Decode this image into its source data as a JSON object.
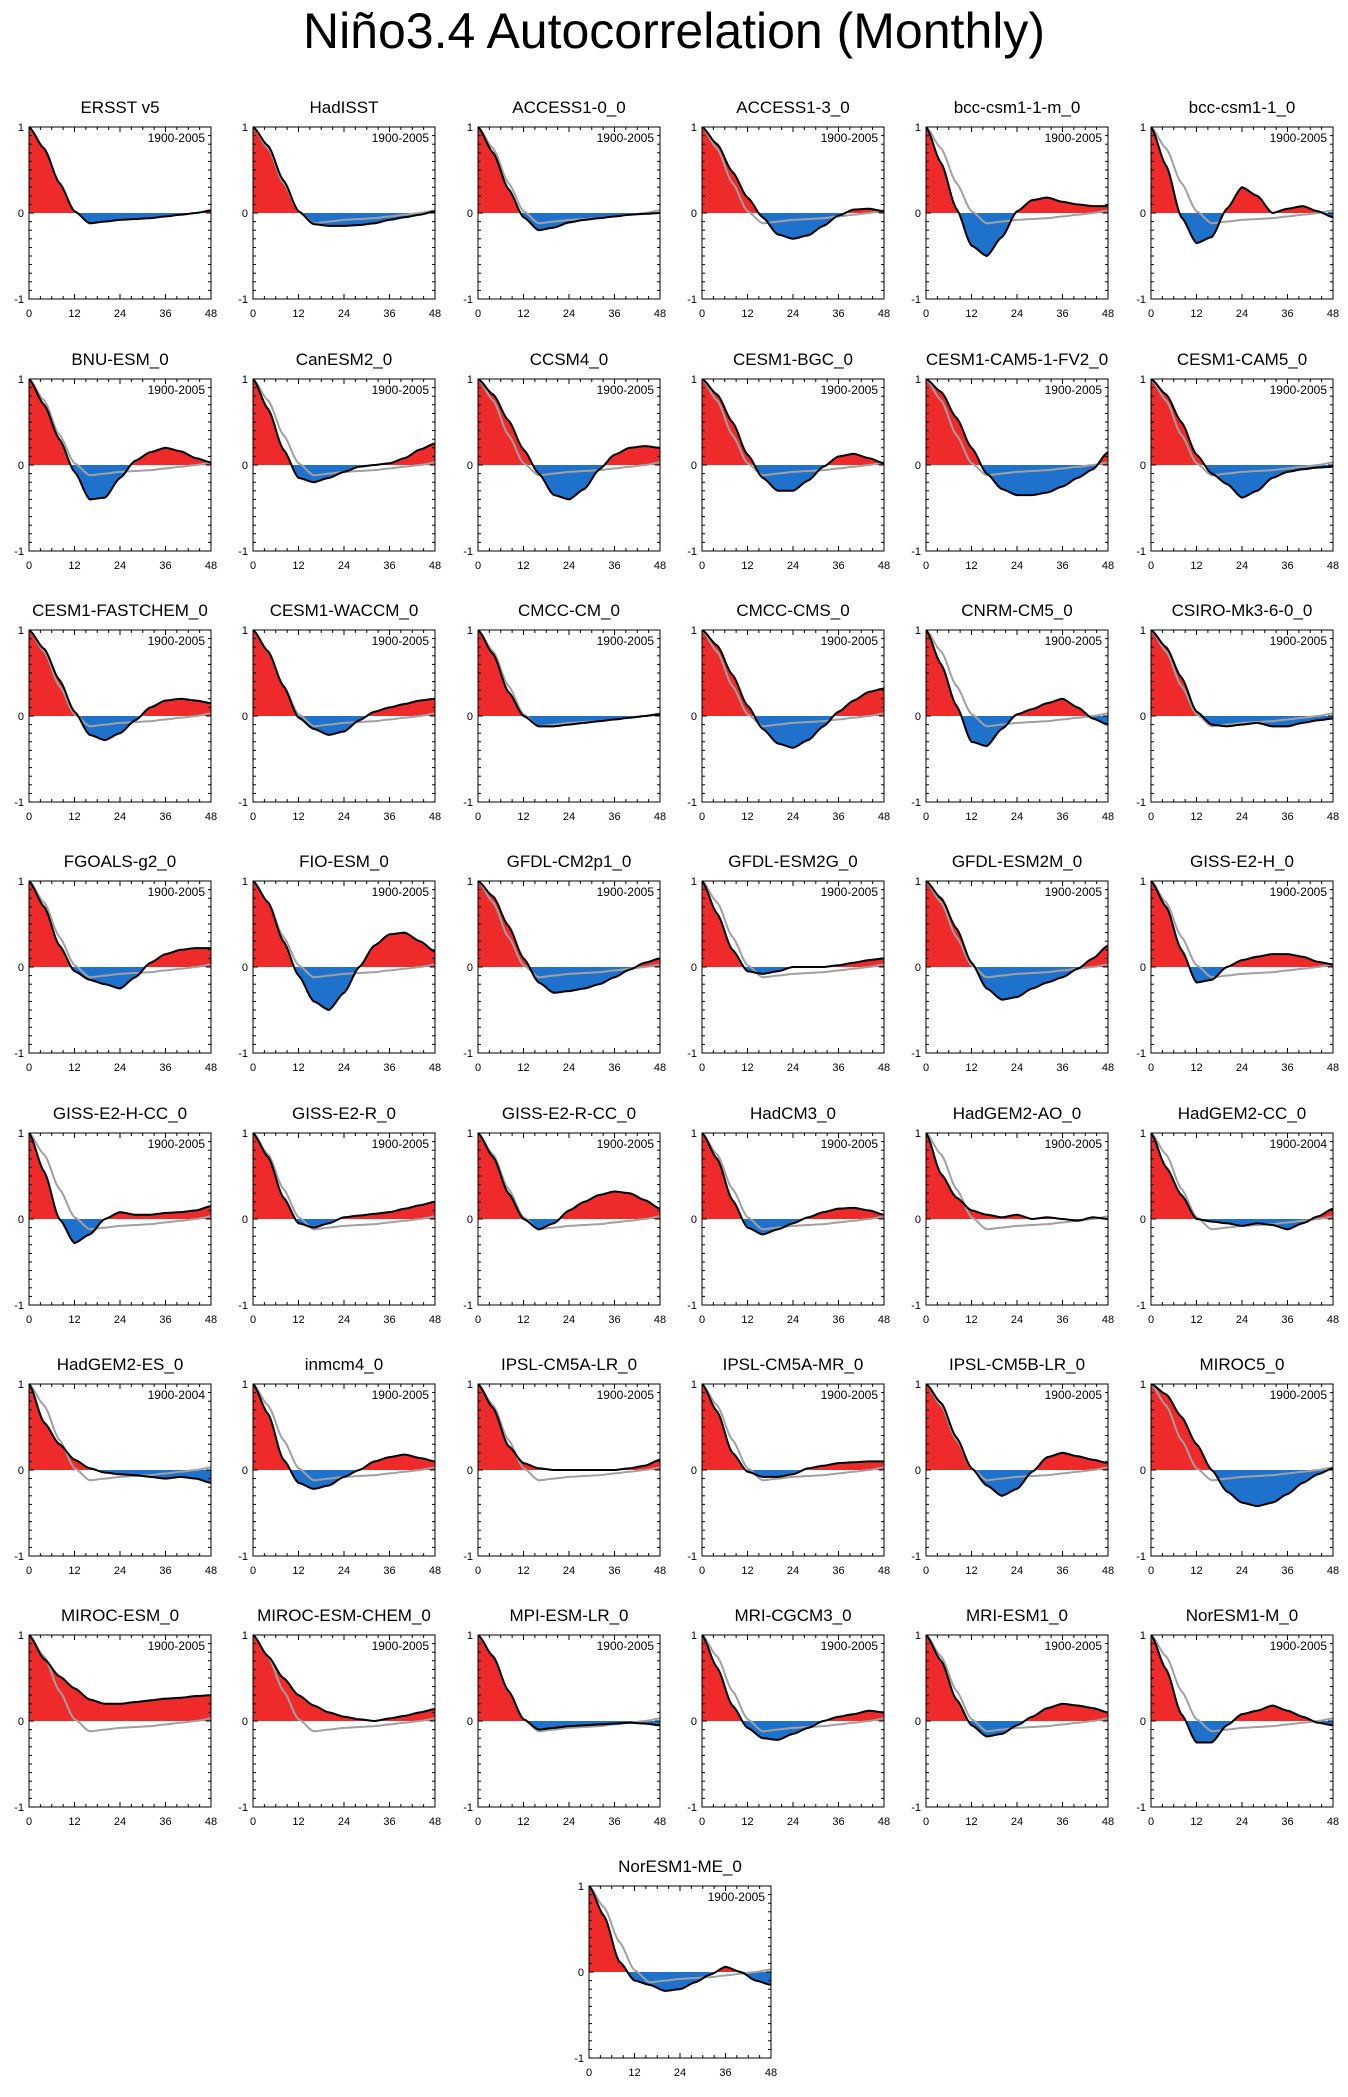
{
  "title": "Niño3.4 Autocorrelation (Monthly)",
  "colors": {
    "positive": "#ee2a2a",
    "negative": "#1f72cc",
    "model_line": "#000000",
    "reference_line": "#a0a0a0",
    "frame": "#000000"
  },
  "chart_data": {
    "type": "area",
    "xlim": [
      0,
      48
    ],
    "ylim": [
      -1,
      1
    ],
    "xticks": [
      0,
      12,
      24,
      36,
      48
    ],
    "yticks": [
      -1,
      0,
      1
    ],
    "xlabel": "",
    "ylabel": "",
    "reference": {
      "name": "ERSST v5",
      "lags": [
        0,
        4,
        8,
        12,
        16,
        20,
        24,
        28,
        32,
        36,
        40,
        44,
        48
      ],
      "values": [
        1.0,
        0.75,
        0.35,
        0.02,
        -0.12,
        -0.1,
        -0.08,
        -0.07,
        -0.06,
        -0.04,
        -0.02,
        0.0,
        0.03
      ]
    },
    "lags": [
      0,
      4,
      8,
      12,
      16,
      20,
      24,
      28,
      32,
      36,
      40,
      44,
      48
    ],
    "panels": [
      {
        "name": "ERSST v5",
        "period": "1900-2005",
        "values": [
          1.0,
          0.75,
          0.35,
          0.02,
          -0.12,
          -0.1,
          -0.08,
          -0.07,
          -0.06,
          -0.04,
          -0.02,
          0.0,
          0.03
        ]
      },
      {
        "name": "HadISST",
        "period": "1900-2005",
        "values": [
          1.0,
          0.78,
          0.38,
          0.02,
          -0.13,
          -0.15,
          -0.15,
          -0.14,
          -0.12,
          -0.08,
          -0.05,
          -0.02,
          0.02
        ]
      },
      {
        "name": "ACCESS1-0_0",
        "period": "1900-2005",
        "values": [
          1.0,
          0.7,
          0.28,
          -0.05,
          -0.2,
          -0.17,
          -0.11,
          -0.08,
          -0.06,
          -0.04,
          -0.02,
          -0.01,
          0.0
        ]
      },
      {
        "name": "ACCESS1-3_0",
        "period": "1900-2005",
        "values": [
          1.0,
          0.8,
          0.48,
          0.18,
          -0.05,
          -0.25,
          -0.3,
          -0.26,
          -0.15,
          -0.03,
          0.04,
          0.05,
          0.02
        ]
      },
      {
        "name": "bcc-csm1-1-m_0",
        "period": "1900-2005",
        "values": [
          1.0,
          0.58,
          0.05,
          -0.38,
          -0.5,
          -0.28,
          0.02,
          0.15,
          0.18,
          0.13,
          0.1,
          0.08,
          0.08
        ]
      },
      {
        "name": "bcc-csm1-1_0",
        "period": "1900-2005",
        "values": [
          1.0,
          0.55,
          -0.05,
          -0.35,
          -0.28,
          0.05,
          0.3,
          0.2,
          0.0,
          0.05,
          0.08,
          0.02,
          -0.05
        ]
      },
      {
        "name": "BNU-ESM_0",
        "period": "1900-2005",
        "values": [
          1.0,
          0.7,
          0.3,
          -0.08,
          -0.4,
          -0.38,
          -0.15,
          0.05,
          0.15,
          0.2,
          0.16,
          0.08,
          0.03
        ]
      },
      {
        "name": "CanESM2_0",
        "period": "1900-2005",
        "values": [
          1.0,
          0.65,
          0.18,
          -0.15,
          -0.2,
          -0.15,
          -0.08,
          -0.02,
          0.0,
          0.02,
          0.08,
          0.18,
          0.25
        ]
      },
      {
        "name": "CCSM4_0",
        "period": "1900-2005",
        "values": [
          1.0,
          0.82,
          0.52,
          0.18,
          -0.1,
          -0.35,
          -0.4,
          -0.28,
          -0.05,
          0.12,
          0.2,
          0.22,
          0.2
        ]
      },
      {
        "name": "CESM1-BGC_0",
        "period": "1900-2005",
        "values": [
          1.0,
          0.82,
          0.5,
          0.12,
          -0.15,
          -0.3,
          -0.3,
          -0.18,
          -0.02,
          0.1,
          0.13,
          0.08,
          0.02
        ]
      },
      {
        "name": "CESM1-CAM5-1-FV2_0",
        "period": "1900-2005",
        "values": [
          1.0,
          0.85,
          0.55,
          0.2,
          -0.1,
          -0.28,
          -0.35,
          -0.35,
          -0.32,
          -0.25,
          -0.15,
          -0.05,
          0.15
        ]
      },
      {
        "name": "CESM1-CAM5_0",
        "period": "1900-2005",
        "values": [
          1.0,
          0.82,
          0.5,
          0.12,
          -0.1,
          -0.22,
          -0.38,
          -0.3,
          -0.15,
          -0.08,
          -0.05,
          -0.03,
          -0.02
        ]
      },
      {
        "name": "CESM1-FASTCHEM_0",
        "period": "1900-2005",
        "values": [
          1.0,
          0.78,
          0.42,
          0.05,
          -0.22,
          -0.28,
          -0.2,
          -0.05,
          0.1,
          0.18,
          0.2,
          0.18,
          0.15
        ]
      },
      {
        "name": "CESM1-WACCM_0",
        "period": "1900-2005",
        "values": [
          1.0,
          0.75,
          0.35,
          -0.02,
          -0.15,
          -0.22,
          -0.18,
          -0.05,
          0.05,
          0.1,
          0.14,
          0.18,
          0.2
        ]
      },
      {
        "name": "CMCC-CM_0",
        "period": "1900-2005",
        "values": [
          1.0,
          0.72,
          0.28,
          0.0,
          -0.12,
          -0.12,
          -0.1,
          -0.08,
          -0.06,
          -0.04,
          -0.02,
          0.0,
          0.02
        ]
      },
      {
        "name": "CMCC-CMS_0",
        "period": "1900-2005",
        "values": [
          1.0,
          0.82,
          0.48,
          0.12,
          -0.15,
          -0.32,
          -0.37,
          -0.28,
          -0.12,
          0.05,
          0.18,
          0.28,
          0.32
        ]
      },
      {
        "name": "CNRM-CM5_0",
        "period": "1900-2005",
        "values": [
          1.0,
          0.6,
          0.12,
          -0.3,
          -0.35,
          -0.15,
          0.02,
          0.08,
          0.15,
          0.2,
          0.1,
          -0.03,
          -0.1
        ]
      },
      {
        "name": "CSIRO-Mk3-6-0_0",
        "period": "1900-2005",
        "values": [
          1.0,
          0.8,
          0.45,
          0.05,
          -0.1,
          -0.12,
          -0.1,
          -0.08,
          -0.12,
          -0.12,
          -0.08,
          -0.05,
          -0.03
        ]
      },
      {
        "name": "FGOALS-g2_0",
        "period": "1900-2005",
        "values": [
          1.0,
          0.7,
          0.25,
          -0.05,
          -0.15,
          -0.2,
          -0.25,
          -0.12,
          0.05,
          0.15,
          0.2,
          0.22,
          0.22
        ]
      },
      {
        "name": "FIO-ESM_0",
        "period": "1900-2005",
        "values": [
          1.0,
          0.75,
          0.3,
          -0.1,
          -0.4,
          -0.5,
          -0.3,
          0.0,
          0.25,
          0.38,
          0.4,
          0.3,
          0.18
        ]
      },
      {
        "name": "GFDL-CM2p1_0",
        "period": "1900-2005",
        "values": [
          1.0,
          0.82,
          0.48,
          0.1,
          -0.18,
          -0.3,
          -0.28,
          -0.25,
          -0.2,
          -0.12,
          -0.03,
          0.05,
          0.1
        ]
      },
      {
        "name": "GFDL-ESM2G_0",
        "period": "1900-2005",
        "values": [
          1.0,
          0.62,
          0.2,
          -0.05,
          -0.08,
          -0.05,
          0.0,
          0.0,
          0.0,
          0.02,
          0.05,
          0.08,
          0.1
        ]
      },
      {
        "name": "GFDL-ESM2M_0",
        "period": "1900-2005",
        "values": [
          1.0,
          0.8,
          0.45,
          0.05,
          -0.25,
          -0.38,
          -0.35,
          -0.25,
          -0.18,
          -0.12,
          -0.02,
          0.1,
          0.25
        ]
      },
      {
        "name": "GISS-E2-H_0",
        "period": "1900-2005",
        "values": [
          1.0,
          0.7,
          0.2,
          -0.18,
          -0.15,
          0.0,
          0.08,
          0.12,
          0.15,
          0.15,
          0.12,
          0.06,
          0.03
        ]
      },
      {
        "name": "GISS-E2-H-CC_0",
        "period": "1900-2005",
        "values": [
          1.0,
          0.55,
          0.0,
          -0.28,
          -0.18,
          0.0,
          0.08,
          0.05,
          0.05,
          0.07,
          0.08,
          0.1,
          0.15
        ]
      },
      {
        "name": "GISS-E2-R_0",
        "period": "1900-2005",
        "values": [
          1.0,
          0.72,
          0.25,
          -0.05,
          -0.1,
          -0.05,
          0.02,
          0.04,
          0.06,
          0.08,
          0.12,
          0.16,
          0.2
        ]
      },
      {
        "name": "GISS-E2-R-CC_0",
        "period": "1900-2005",
        "values": [
          1.0,
          0.72,
          0.3,
          0.0,
          -0.12,
          -0.05,
          0.1,
          0.2,
          0.28,
          0.32,
          0.3,
          0.22,
          0.12
        ]
      },
      {
        "name": "HadCM3_0",
        "period": "1900-2005",
        "values": [
          1.0,
          0.7,
          0.22,
          -0.1,
          -0.18,
          -0.12,
          -0.05,
          0.02,
          0.08,
          0.12,
          0.13,
          0.1,
          0.05
        ]
      },
      {
        "name": "HadGEM2-AO_0",
        "period": "1900-2005",
        "values": [
          1.0,
          0.52,
          0.25,
          0.1,
          0.05,
          0.02,
          0.05,
          0.0,
          0.02,
          0.0,
          -0.02,
          0.02,
          0.0
        ]
      },
      {
        "name": "HadGEM2-CC_0",
        "period": "1900-2004",
        "values": [
          1.0,
          0.6,
          0.28,
          0.0,
          -0.03,
          -0.05,
          -0.08,
          -0.05,
          -0.07,
          -0.12,
          -0.05,
          0.03,
          0.12
        ]
      },
      {
        "name": "HadGEM2-ES_0",
        "period": "1900-2004",
        "values": [
          1.0,
          0.55,
          0.3,
          0.12,
          0.02,
          -0.03,
          -0.05,
          -0.06,
          -0.08,
          -0.1,
          -0.08,
          -0.1,
          -0.15
        ]
      },
      {
        "name": "inmcm4_0",
        "period": "1900-2005",
        "values": [
          1.0,
          0.65,
          0.12,
          -0.15,
          -0.22,
          -0.18,
          -0.08,
          0.0,
          0.1,
          0.15,
          0.18,
          0.14,
          0.1
        ]
      },
      {
        "name": "IPSL-CM5A-LR_0",
        "period": "1900-2005",
        "values": [
          1.0,
          0.72,
          0.28,
          0.08,
          0.02,
          0.0,
          0.0,
          0.0,
          0.0,
          0.0,
          0.02,
          0.05,
          0.12
        ]
      },
      {
        "name": "IPSL-CM5A-MR_0",
        "period": "1900-2005",
        "values": [
          1.0,
          0.68,
          0.2,
          -0.02,
          -0.08,
          -0.08,
          -0.05,
          0.02,
          0.05,
          0.08,
          0.09,
          0.1,
          0.1
        ]
      },
      {
        "name": "IPSL-CM5B-LR_0",
        "period": "1900-2005",
        "values": [
          1.0,
          0.78,
          0.38,
          0.02,
          -0.18,
          -0.3,
          -0.22,
          -0.02,
          0.15,
          0.2,
          0.16,
          0.12,
          0.08
        ]
      },
      {
        "name": "MIROC5_0",
        "period": "1900-2005",
        "values": [
          1.0,
          0.88,
          0.62,
          0.3,
          0.0,
          -0.25,
          -0.38,
          -0.42,
          -0.38,
          -0.28,
          -0.15,
          -0.05,
          0.02
        ]
      },
      {
        "name": "MIROC-ESM_0",
        "period": "1900-2005",
        "values": [
          1.0,
          0.72,
          0.52,
          0.38,
          0.25,
          0.2,
          0.2,
          0.22,
          0.24,
          0.26,
          0.27,
          0.29,
          0.3
        ]
      },
      {
        "name": "MIROC-ESM-CHEM_0",
        "period": "1900-2005",
        "values": [
          1.0,
          0.75,
          0.5,
          0.3,
          0.18,
          0.1,
          0.05,
          0.02,
          0.0,
          0.03,
          0.06,
          0.1,
          0.14
        ]
      },
      {
        "name": "MPI-ESM-LR_0",
        "period": "1900-2005",
        "values": [
          1.0,
          0.75,
          0.35,
          0.02,
          -0.1,
          -0.08,
          -0.06,
          -0.05,
          -0.04,
          -0.03,
          -0.02,
          -0.03,
          -0.05
        ]
      },
      {
        "name": "MRI-CGCM3_0",
        "period": "1900-2005",
        "values": [
          1.0,
          0.62,
          0.18,
          -0.08,
          -0.2,
          -0.22,
          -0.15,
          -0.08,
          0.0,
          0.05,
          0.08,
          0.12,
          0.1
        ]
      },
      {
        "name": "MRI-ESM1_0",
        "period": "1900-2005",
        "values": [
          1.0,
          0.7,
          0.25,
          -0.05,
          -0.18,
          -0.15,
          -0.05,
          0.05,
          0.15,
          0.2,
          0.18,
          0.15,
          0.1
        ]
      },
      {
        "name": "NorESM1-M_0",
        "period": "1900-2005",
        "values": [
          1.0,
          0.6,
          0.08,
          -0.25,
          -0.25,
          -0.05,
          0.08,
          0.12,
          0.18,
          0.12,
          0.05,
          -0.02,
          -0.05
        ]
      },
      {
        "name": "NorESM1-ME_0",
        "period": "1900-2005",
        "values": [
          1.0,
          0.65,
          0.12,
          -0.1,
          -0.15,
          -0.22,
          -0.2,
          -0.12,
          -0.03,
          0.06,
          0.0,
          -0.1,
          -0.15
        ]
      }
    ]
  }
}
